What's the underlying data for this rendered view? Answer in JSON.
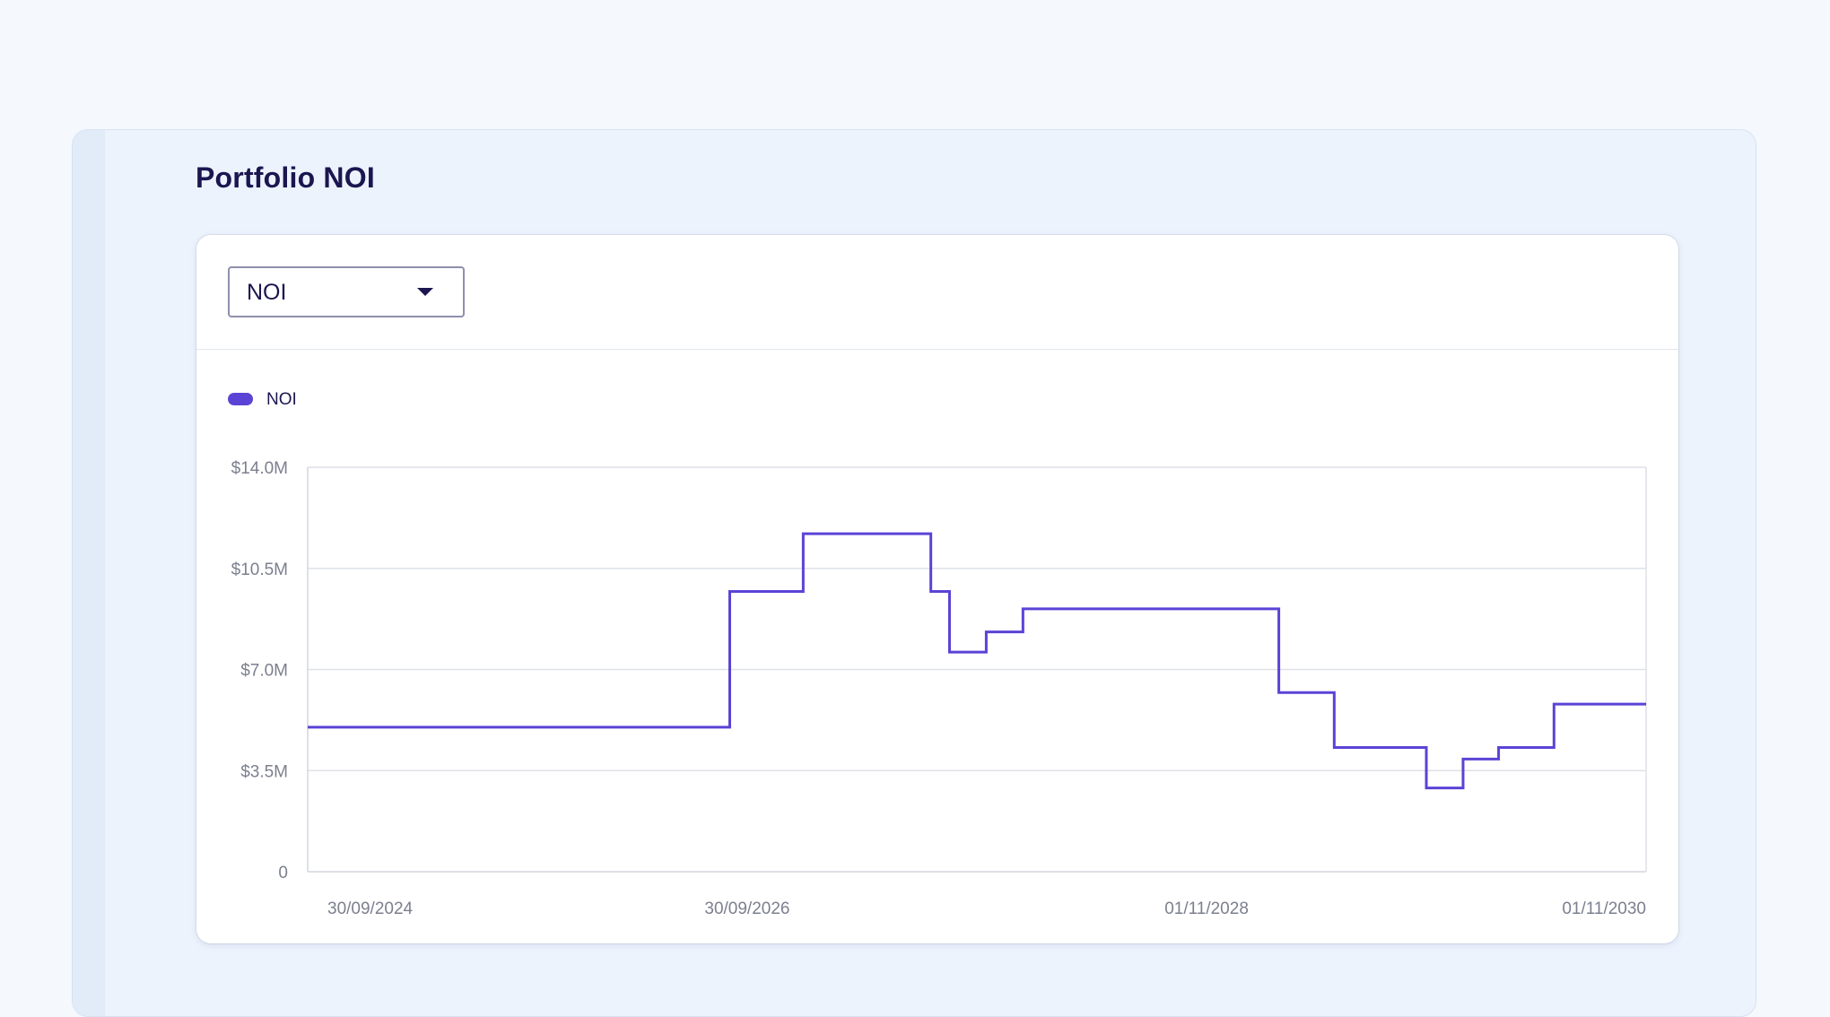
{
  "page": {
    "title": "Portfolio NOI"
  },
  "filter": {
    "selected": "NOI"
  },
  "colors": {
    "series": "#5b43d6",
    "grid": "#dfe1e8",
    "axis_text": "#7c7f8e",
    "title": "#1b1650"
  },
  "chart_data": {
    "type": "line",
    "step": true,
    "grid": true,
    "legend_position": "top-left",
    "ylim": [
      0,
      14000000
    ],
    "y_ticks": [
      0,
      3500000,
      7000000,
      10500000,
      14000000
    ],
    "y_tick_labels": [
      "0",
      "$3.5M",
      "$7.0M",
      "$10.5M",
      "$14.0M"
    ],
    "xlim": [
      "2024-09-30",
      "2030-11-01"
    ],
    "x_tick_dates": [
      "2024-09-30",
      "2026-09-30",
      "2028-11-01",
      "2030-11-01"
    ],
    "x_tick_labels": [
      "30/09/2024",
      "30/09/2026",
      "01/11/2028",
      "01/11/2030"
    ],
    "series": [
      {
        "name": "NOI",
        "x": [
          "2024-09-30",
          "2026-09-01",
          "2027-01-01",
          "2027-08-01",
          "2027-09-01",
          "2027-11-01",
          "2028-01-01",
          "2029-03-01",
          "2029-06-01",
          "2029-11-01",
          "2030-01-01",
          "2030-03-01",
          "2030-06-01"
        ],
        "y": [
          5000000,
          9700000,
          11700000,
          9700000,
          7600000,
          8300000,
          9100000,
          6200000,
          4300000,
          2900000,
          3900000,
          4300000,
          5800000
        ]
      }
    ]
  }
}
